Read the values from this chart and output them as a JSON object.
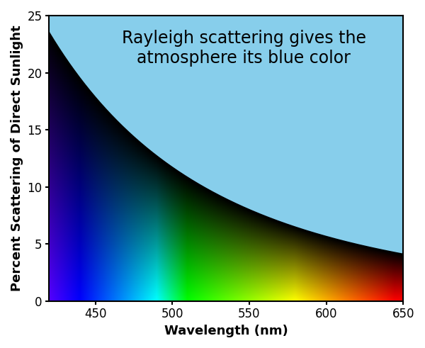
{
  "title_line1": "Rayleigh scattering gives the",
  "title_line2": "atmosphere its blue color",
  "xlabel": "Wavelength (nm)",
  "ylabel": "Percent Scattering of Direct Sunlight",
  "xmin": 420,
  "xmax": 650,
  "ymin": 0,
  "ymax": 25,
  "xticks": [
    450,
    500,
    550,
    600,
    650
  ],
  "yticks": [
    0,
    5,
    10,
    15,
    20,
    25
  ],
  "rayleigh_scale": 23.5,
  "rayleigh_ref_wl": 420,
  "cyan_color": "#87CEEB",
  "figsize": [
    6.0,
    4.91
  ],
  "dpi": 100,
  "title_fontsize": 17,
  "axis_label_fontsize": 13,
  "tick_fontsize": 12
}
